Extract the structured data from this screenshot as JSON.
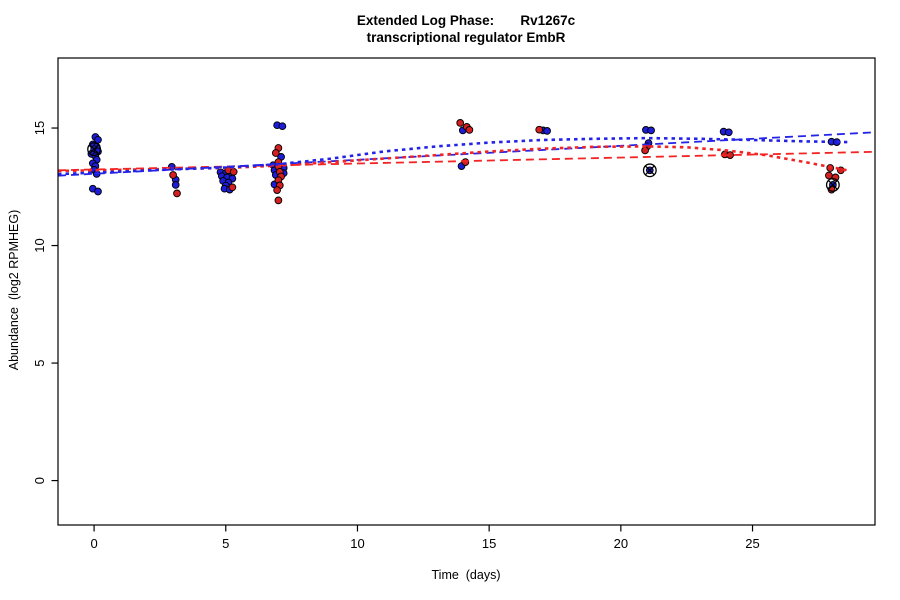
{
  "title": {
    "line1": "Extended Log Phase:       Rv1267c",
    "line2": "transcriptional regulator EmbR"
  },
  "axes": {
    "x": {
      "label": "Time  (days)",
      "ticks": [
        0,
        5,
        10,
        15,
        20,
        25
      ]
    },
    "y": {
      "label": "Abundance  (log2 RPMHEG)",
      "ticks": [
        0,
        5,
        10,
        15
      ]
    }
  },
  "colors": {
    "point_blue": "#1d1dd8",
    "point_red": "#d42020",
    "line_blue": "#2424e8",
    "line_red": "#f22424",
    "outlier_stroke": "#000000",
    "axis": "#000000"
  },
  "chart_data": {
    "type": "scatter",
    "title": "Extended Log Phase: Rv1267c transcriptional regulator EmbR",
    "xlabel": "Time (days)",
    "ylabel": "Abundance (log2 RPMHEG)",
    "xlim": [
      -1.37,
      29.65
    ],
    "ylim": [
      -1.89,
      17.98
    ],
    "grid": false,
    "legend": "none",
    "series": [
      {
        "name": "blue-points",
        "type": "scatter",
        "color": "#1d1dd8",
        "points": [
          [
            0.05,
            14.62
          ],
          [
            0.15,
            14.5
          ],
          [
            -0.05,
            14.3
          ],
          [
            0.1,
            14.2
          ],
          [
            0.0,
            14.1
          ],
          [
            0.15,
            14.0
          ],
          [
            -0.1,
            13.9
          ],
          [
            0.05,
            13.8
          ],
          [
            0.1,
            13.65
          ],
          [
            -0.05,
            13.5
          ],
          [
            0.05,
            13.38
          ],
          [
            0.0,
            13.22
          ],
          [
            0.1,
            13.05
          ],
          [
            -0.05,
            12.42
          ],
          [
            0.15,
            12.3
          ],
          [
            2.95,
            13.35
          ],
          [
            3.1,
            12.8
          ],
          [
            3.1,
            12.58
          ],
          [
            4.8,
            13.12
          ],
          [
            5.0,
            13.08
          ],
          [
            5.2,
            13.0
          ],
          [
            4.85,
            12.95
          ],
          [
            5.05,
            12.9
          ],
          [
            5.25,
            12.85
          ],
          [
            4.9,
            12.75
          ],
          [
            5.1,
            12.68
          ],
          [
            5.0,
            12.55
          ],
          [
            4.95,
            12.42
          ],
          [
            5.15,
            12.38
          ],
          [
            6.95,
            15.12
          ],
          [
            7.15,
            15.08
          ],
          [
            7.1,
            13.77
          ],
          [
            6.8,
            13.42
          ],
          [
            7.2,
            13.3
          ],
          [
            6.85,
            13.2
          ],
          [
            7.2,
            13.08
          ],
          [
            6.9,
            13.0
          ],
          [
            6.85,
            12.6
          ],
          [
            14.0,
            14.9
          ],
          [
            13.95,
            13.38
          ],
          [
            17.05,
            14.9
          ],
          [
            17.2,
            14.88
          ],
          [
            20.95,
            14.92
          ],
          [
            21.15,
            14.9
          ],
          [
            21.05,
            14.36
          ],
          [
            21.1,
            13.2
          ],
          [
            23.9,
            14.85
          ],
          [
            24.1,
            14.82
          ],
          [
            28.0,
            14.42
          ],
          [
            28.2,
            14.4
          ],
          [
            28.05,
            12.58
          ]
        ]
      },
      {
        "name": "red-points",
        "type": "scatter",
        "color": "#d42020",
        "points": [
          [
            3.0,
            13.0
          ],
          [
            3.15,
            12.22
          ],
          [
            5.1,
            13.2
          ],
          [
            5.3,
            13.14
          ],
          [
            5.25,
            12.48
          ],
          [
            7.0,
            14.15
          ],
          [
            6.9,
            13.94
          ],
          [
            7.0,
            13.55
          ],
          [
            7.0,
            13.36
          ],
          [
            7.05,
            13.14
          ],
          [
            7.1,
            12.94
          ],
          [
            7.0,
            12.78
          ],
          [
            7.05,
            12.56
          ],
          [
            6.95,
            12.36
          ],
          [
            7.0,
            11.92
          ],
          [
            13.9,
            15.22
          ],
          [
            14.15,
            15.05
          ],
          [
            14.25,
            14.92
          ],
          [
            14.1,
            13.55
          ],
          [
            16.9,
            14.93
          ],
          [
            21.0,
            14.22
          ],
          [
            20.92,
            14.05
          ],
          [
            23.95,
            13.88
          ],
          [
            24.15,
            13.85
          ],
          [
            27.95,
            13.3
          ],
          [
            28.35,
            13.2
          ],
          [
            27.9,
            12.98
          ],
          [
            28.15,
            12.9
          ],
          [
            28.0,
            12.38
          ]
        ]
      },
      {
        "name": "outlier-markers",
        "type": "outlier",
        "color": "#000000",
        "points": [
          [
            0.0,
            14.1
          ],
          [
            21.1,
            13.2
          ],
          [
            28.05,
            12.58
          ]
        ]
      },
      {
        "name": "red-linear-fit",
        "type": "line",
        "style": "dashed",
        "color": "#f22424",
        "points": [
          [
            -1.37,
            13.2
          ],
          [
            29.65,
            13.99
          ]
        ]
      },
      {
        "name": "blue-linear-fit",
        "type": "line",
        "style": "dashed",
        "color": "#2424e8",
        "points": [
          [
            -1.37,
            12.97
          ],
          [
            29.65,
            14.82
          ]
        ]
      },
      {
        "name": "red-smooth-fit",
        "type": "line",
        "style": "dotted",
        "color": "#f22424",
        "points": [
          [
            -1.37,
            13.17
          ],
          [
            0,
            13.2
          ],
          [
            3,
            13.26
          ],
          [
            5,
            13.3
          ],
          [
            7,
            13.4
          ],
          [
            9,
            13.55
          ],
          [
            11,
            13.7
          ],
          [
            13,
            13.85
          ],
          [
            15,
            14.0
          ],
          [
            17,
            14.12
          ],
          [
            19,
            14.2
          ],
          [
            21,
            14.22
          ],
          [
            22.5,
            14.18
          ],
          [
            24,
            14.05
          ],
          [
            25.5,
            13.85
          ],
          [
            27,
            13.55
          ],
          [
            28.6,
            13.2
          ]
        ]
      },
      {
        "name": "blue-smooth-fit",
        "type": "line",
        "style": "dotted",
        "color": "#2424e8",
        "points": [
          [
            -1.37,
            13.04
          ],
          [
            0,
            13.1
          ],
          [
            3,
            13.24
          ],
          [
            5,
            13.32
          ],
          [
            7,
            13.46
          ],
          [
            9,
            13.7
          ],
          [
            11,
            14.0
          ],
          [
            13,
            14.22
          ],
          [
            15,
            14.38
          ],
          [
            17,
            14.49
          ],
          [
            19,
            14.54
          ],
          [
            21,
            14.57
          ],
          [
            23,
            14.54
          ],
          [
            25,
            14.49
          ],
          [
            27,
            14.43
          ],
          [
            28.6,
            14.4
          ]
        ]
      }
    ]
  }
}
